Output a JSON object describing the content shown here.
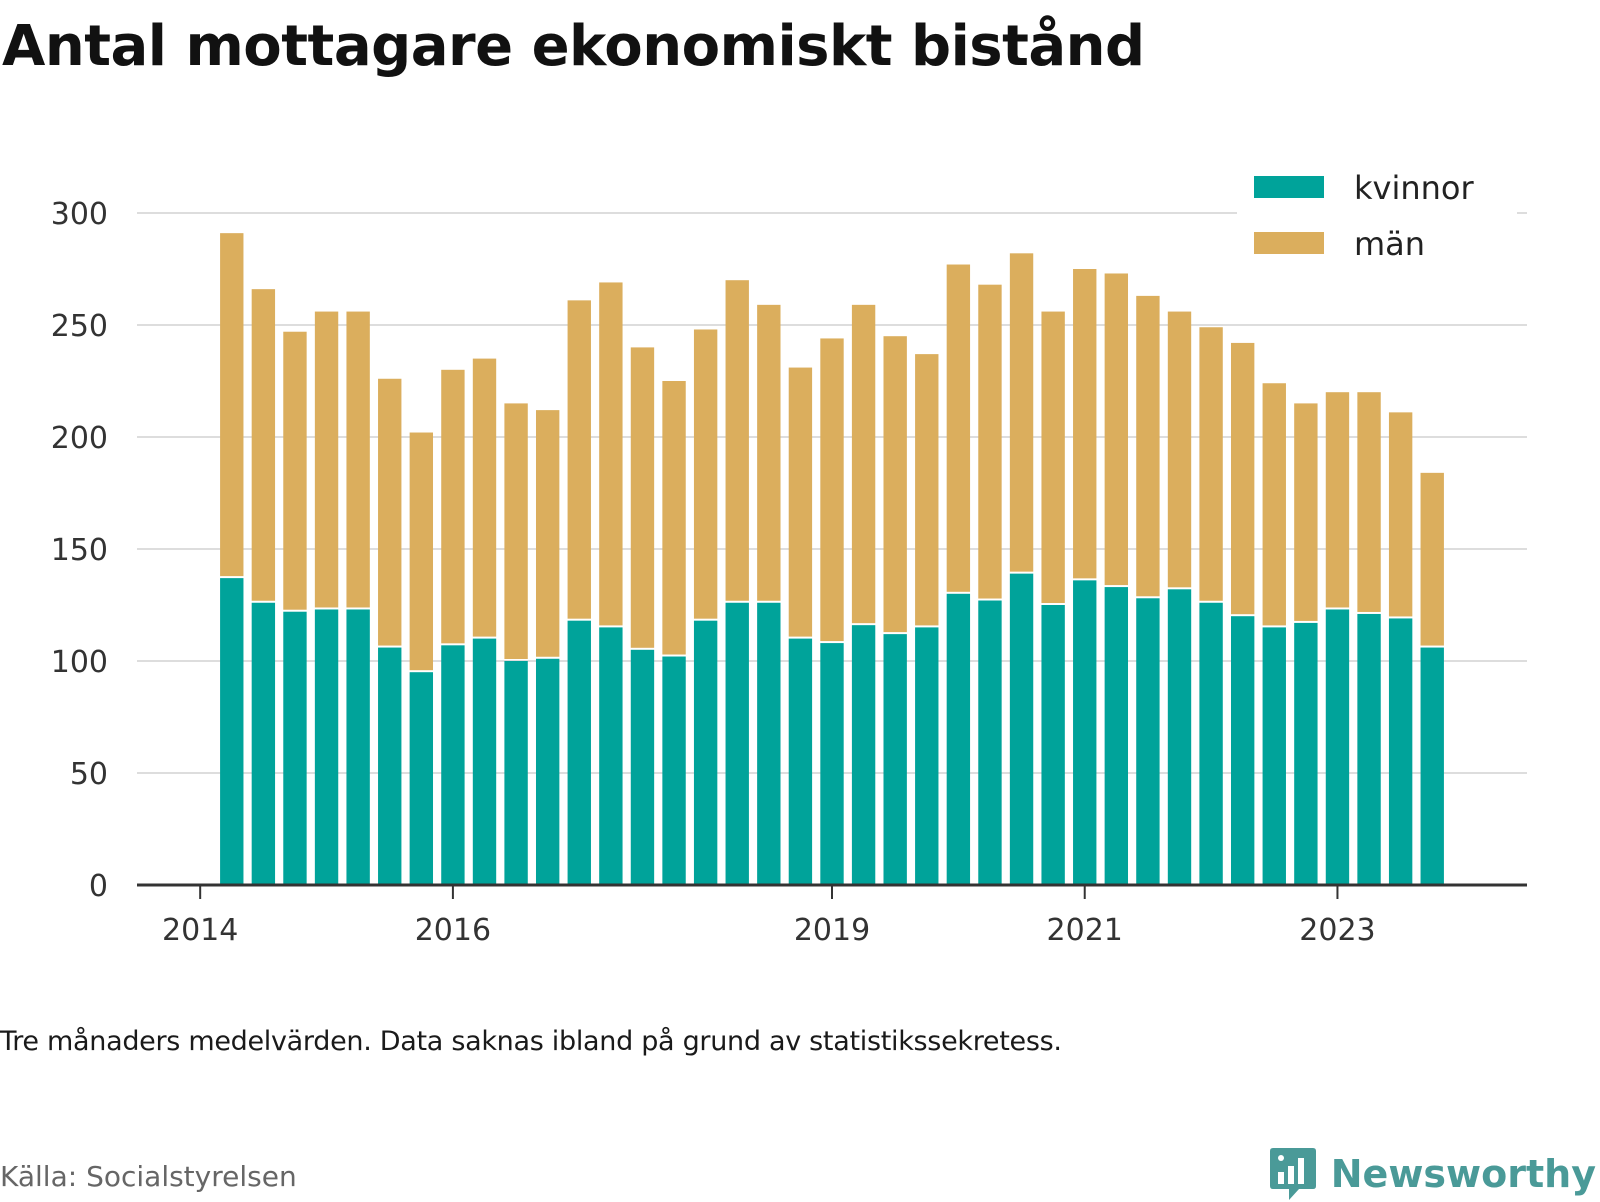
{
  "title": "Antal mottagare ekonomiskt bistånd",
  "footnote": "Tre månaders medelvärden. Data saknas ibland på grund av statistikssekretess.",
  "source": "Källa: Socialstyrelsen",
  "brand": {
    "name": "Newsworthy",
    "icon": "bar-chart-speech-bubble-icon",
    "color": "#4a9a98"
  },
  "colors": {
    "kvinnor": "#00a39a",
    "man": "#dbae5d",
    "grid": "#dddddd",
    "axis": "#333333"
  },
  "chart_data": {
    "type": "bar",
    "stacked": true,
    "x_start": 2014.25,
    "x_step": 0.25,
    "series": [
      {
        "name": "kvinnor",
        "color": "#00a39a",
        "values": [
          137,
          126,
          122,
          123,
          123,
          106,
          95,
          107,
          110,
          100,
          101,
          118,
          115,
          105,
          102,
          118,
          126,
          126,
          110,
          108,
          116,
          112,
          115,
          130,
          127,
          139,
          125,
          136,
          133,
          128,
          132,
          126,
          120,
          115,
          117,
          123,
          121,
          119,
          106
        ]
      },
      {
        "name": "män",
        "color": "#dbae5d",
        "values": [
          154,
          140,
          125,
          133,
          133,
          120,
          107,
          123,
          125,
          115,
          111,
          143,
          154,
          135,
          123,
          130,
          144,
          133,
          121,
          136,
          143,
          133,
          122,
          147,
          141,
          143,
          131,
          139,
          140,
          135,
          124,
          123,
          122,
          109,
          98,
          97,
          99,
          92,
          78
        ]
      }
    ],
    "ylim": [
      0,
      300
    ],
    "yticks": [
      0,
      50,
      100,
      150,
      200,
      250,
      300
    ],
    "xlim": [
      2013.5,
      2024.5
    ],
    "xticks": [
      2014,
      2016,
      2019,
      2021,
      2023
    ],
    "grid": "horizontal",
    "legend": "top-right"
  }
}
